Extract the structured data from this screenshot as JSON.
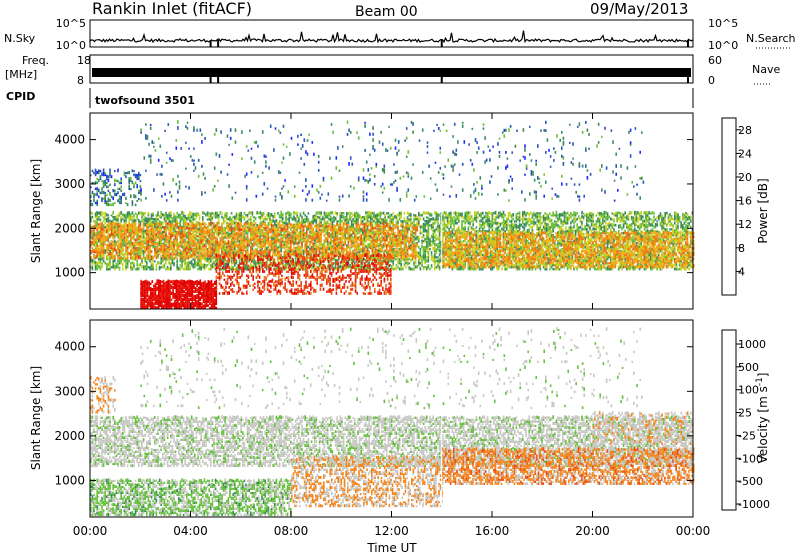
{
  "header": {
    "station": "Rankin Inlet (fitACF)",
    "beam": "Beam 00",
    "date": "09/May/2013"
  },
  "top_panels": {
    "nsky_label": "N.Sky",
    "nsky_ticks": [
      "10^5",
      "10^0"
    ],
    "nsearch_label": "N.Search",
    "nsearch_ticks": [
      "10^5",
      "10^0"
    ],
    "freq_label": "Freq.",
    "freq_unit": "[MHz]",
    "freq_ticks": [
      "18",
      "8"
    ],
    "nave_label": "Nave",
    "nave_ticks": [
      "60",
      "0"
    ],
    "cpid_label": "CPID",
    "cpid_text": "twofsound 3501"
  },
  "x_axis": {
    "label": "Time UT",
    "ticks": [
      "00:00",
      "04:00",
      "08:00",
      "12:00",
      "16:00",
      "20:00",
      "00:00"
    ]
  },
  "colors": {
    "power": [
      "#1a2aff",
      "#2b55b5",
      "#3b8a5c",
      "#6abf3a",
      "#c9d21d",
      "#f7a81a",
      "#f07a14",
      "#e84a10",
      "#e51c0c",
      "#e30000"
    ],
    "velocity": [
      "#e30000",
      "#e8501a",
      "#f5861e",
      "#c8c8c4",
      "#c8c8c4",
      "#66c23e",
      "#3a8a55",
      "#2b6cae",
      "#1c3bb0"
    ]
  },
  "chart_data": [
    {
      "type": "heatmap",
      "title": "",
      "xlabel": "",
      "ylabel": "Slant Range [km]",
      "yticks": [
        "1000",
        "2000",
        "3000",
        "4000"
      ],
      "ylim": [
        180,
        4600
      ],
      "xlim": [
        0,
        24
      ],
      "colorbar": {
        "label": "Power [dB]",
        "ticks": [
          "4",
          "8",
          "12",
          "16",
          "20",
          "24",
          "28"
        ],
        "range": [
          0,
          30
        ]
      },
      "bands": [
        {
          "t0": 0,
          "t1": 24,
          "r_lo": 1050,
          "r_hi": 2350,
          "value": 10,
          "density": 0.55
        },
        {
          "t0": 0,
          "t1": 13,
          "r_lo": 1300,
          "r_hi": 2100,
          "value": 18,
          "density": 0.5
        },
        {
          "t0": 2,
          "t1": 5,
          "r_lo": 180,
          "r_hi": 800,
          "value": 29,
          "density": 0.85
        },
        {
          "t0": 5,
          "t1": 12,
          "r_lo": 500,
          "r_hi": 1400,
          "value": 24,
          "density": 0.35
        },
        {
          "t0": 0,
          "t1": 2,
          "r_lo": 2500,
          "r_hi": 3300,
          "value": 6,
          "density": 0.25
        },
        {
          "t0": 14,
          "t1": 24,
          "r_lo": 1100,
          "r_hi": 1900,
          "value": 17,
          "density": 0.55
        },
        {
          "t0": 2,
          "t1": 22,
          "r_lo": 2600,
          "r_hi": 4400,
          "value": 6,
          "density": 0.04
        }
      ]
    },
    {
      "type": "heatmap",
      "title": "",
      "xlabel": "Time UT",
      "ylabel": "Slant Range [km]",
      "yticks": [
        "1000",
        "2000",
        "3000",
        "4000"
      ],
      "ylim": [
        180,
        4600
      ],
      "xlim": [
        0,
        24
      ],
      "colorbar": {
        "label": "Velocity [m s^-1]",
        "ticks": [
          "1000",
          "500",
          "100",
          "25",
          "-25",
          "-100",
          "-500",
          "-1000"
        ],
        "range": [
          -1200,
          1200
        ]
      },
      "bands": [
        {
          "t0": 0,
          "t1": 24,
          "r_lo": 1300,
          "r_hi": 2400,
          "value": 0,
          "density": 0.55
        },
        {
          "t0": 0,
          "t1": 8,
          "r_lo": 200,
          "r_hi": 1000,
          "value": 200,
          "density": 0.6
        },
        {
          "t0": 8,
          "t1": 14,
          "r_lo": 400,
          "r_hi": 1500,
          "value": -400,
          "density": 0.45
        },
        {
          "t0": 14,
          "t1": 24,
          "r_lo": 900,
          "r_hi": 1700,
          "value": -500,
          "density": 0.6
        },
        {
          "t0": 0,
          "t1": 1,
          "r_lo": 2500,
          "r_hi": 3300,
          "value": -400,
          "density": 0.3
        },
        {
          "t0": 20,
          "t1": 24,
          "r_lo": 1800,
          "r_hi": 2500,
          "value": -300,
          "density": 0.35
        },
        {
          "t0": 2,
          "t1": 22,
          "r_lo": 2600,
          "r_hi": 4400,
          "value": 0,
          "density": 0.04
        }
      ]
    }
  ]
}
